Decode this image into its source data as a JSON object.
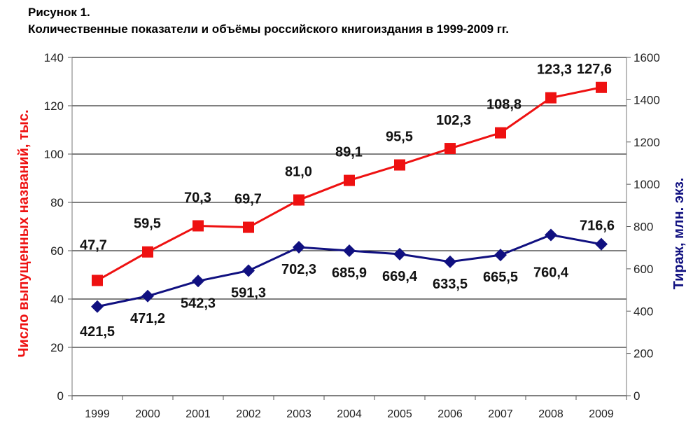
{
  "caption": {
    "label": "Рисунок 1.",
    "title": "Количественные показатели и объёмы российского книгоиздания в 1999-2009 гг."
  },
  "colors": {
    "titles_series": "#ee1111",
    "runs_series": "#101080",
    "grid": "#000000"
  },
  "chart_data": {
    "type": "line",
    "title": "Количественные показатели и объёмы российского книгоиздания в 1999-2009 гг.",
    "categories": [
      "1999",
      "2000",
      "2001",
      "2002",
      "2003",
      "2004",
      "2005",
      "2006",
      "2007",
      "2008",
      "2009"
    ],
    "y_left": {
      "label": "Число выпущенных названий, тыс.",
      "range": [
        0,
        140
      ],
      "ticks": [
        "0",
        "20",
        "40",
        "60",
        "80",
        "100",
        "120",
        "140"
      ]
    },
    "y_right": {
      "label": "Тираж, млн. экз.",
      "range": [
        0,
        1600
      ],
      "ticks": [
        "0",
        "200",
        "400",
        "600",
        "800",
        "1000",
        "1200",
        "1400",
        "1600"
      ]
    },
    "grid": true,
    "series": [
      {
        "axis": "left",
        "marker": "square",
        "values": [
          47.7,
          59.5,
          70.3,
          69.7,
          81.0,
          89.1,
          95.5,
          102.3,
          108.8,
          123.3,
          127.6
        ],
        "labels": [
          "47,7",
          "59,5",
          "70,3",
          "69,7",
          "81,0",
          "89,1",
          "95,5",
          "102,3",
          "108,8",
          "123,3",
          "127,6"
        ]
      },
      {
        "axis": "right",
        "marker": "diamond",
        "values": [
          421.5,
          471.2,
          542.3,
          591.3,
          702.3,
          685.9,
          669.4,
          633.5,
          665.5,
          760.4,
          716.6
        ],
        "labels": [
          "421,5",
          "471,2",
          "542,3",
          "591,3",
          "702,3",
          "685,9",
          "669,4",
          "633,5",
          "665,5",
          "760,4",
          "716,6"
        ]
      }
    ]
  }
}
